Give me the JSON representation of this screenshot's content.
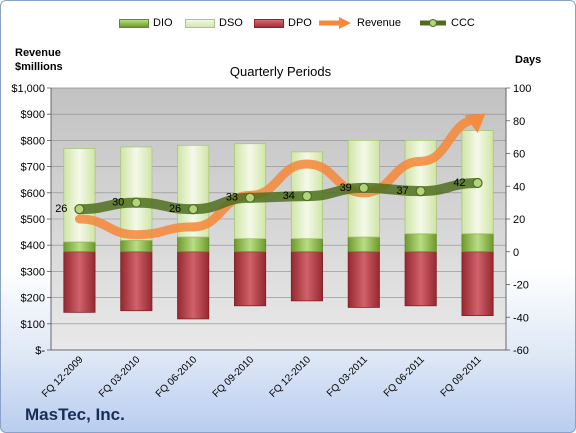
{
  "chart_data": {
    "type": "bar",
    "title": "Quarterly Periods",
    "company": "MasTec, Inc.",
    "y_left_label": [
      "Revenue",
      "$millions"
    ],
    "y_right_label": "Days",
    "y_left_ticks": [
      "$-",
      "$100",
      "$200",
      "$300",
      "$400",
      "$500",
      "$600",
      "$700",
      "$800",
      "$900",
      "$1,000"
    ],
    "y_right_ticks": [
      "-60",
      "-40",
      "-20",
      "0",
      "20",
      "40",
      "60",
      "80",
      "100"
    ],
    "ylim_left": [
      0,
      1000
    ],
    "ylim_right": [
      -60,
      100
    ],
    "categories": [
      "FQ 12-2009",
      "FQ 03-2010",
      "FQ 06-2010",
      "FQ 09-2010",
      "FQ 12-2010",
      "FQ 03-2011",
      "FQ 06-2011",
      "FQ 09-2011"
    ],
    "series": [
      {
        "name": "DIO",
        "axis": "right",
        "values": [
          6,
          7,
          9,
          8,
          8,
          9,
          11,
          11
        ]
      },
      {
        "name": "DSO",
        "axis": "right",
        "values": [
          57,
          57,
          56,
          58,
          53,
          59,
          57,
          63
        ]
      },
      {
        "name": "DPO",
        "axis": "right",
        "values": [
          -37,
          -36,
          -41,
          -33,
          -30,
          -34,
          -33,
          -39
        ]
      },
      {
        "name": "Revenue",
        "axis": "left",
        "values": [
          500,
          440,
          470,
          590,
          710,
          600,
          720,
          880
        ]
      },
      {
        "name": "CCC",
        "axis": "right",
        "values": [
          26,
          30,
          26,
          33,
          34,
          39,
          37,
          42
        ]
      }
    ],
    "data_labels": [
      "26",
      "30",
      "26",
      "33",
      "34",
      "39",
      "37",
      "42"
    ],
    "grid": true,
    "legend_position": "top",
    "colors": {
      "dio": "#8cbf45",
      "dso": "#ddeebd",
      "dpo": "#b83c45",
      "revenue": "#f58a3c",
      "ccc": "#4d6e1f",
      "plot_bg": "#c4c4c4"
    }
  }
}
